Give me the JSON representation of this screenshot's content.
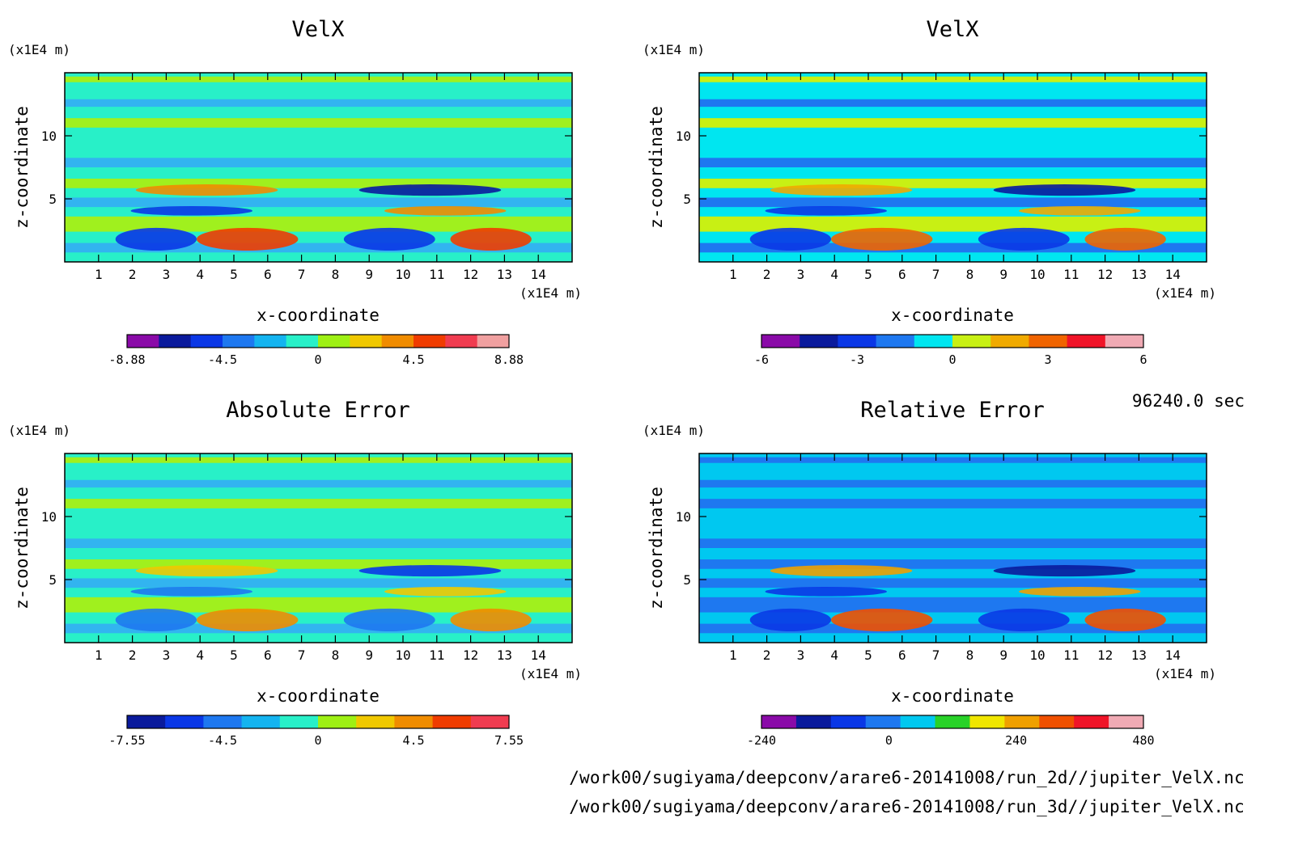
{
  "time_label": "96240.0 sec",
  "file_paths": [
    "/work00/sugiyama/deepconv/arare6-20141008/run_2d//jupiter_VelX.nc",
    "/work00/sugiyama/deepconv/arare6-20141008/run_3d//jupiter_VelX.nc"
  ],
  "chart_data": [
    {
      "type": "heatmap",
      "title": "VelX",
      "xlabel": "x-coordinate",
      "ylabel": "z-coordinate",
      "x_unit": "(x1E4 m)",
      "y_unit": "(x1E4 m)",
      "x_ticks": [
        "1",
        "2",
        "3",
        "4",
        "5",
        "6",
        "7",
        "8",
        "9",
        "10",
        "11",
        "12",
        "13",
        "14"
      ],
      "y_ticks": [
        "5",
        "10"
      ],
      "xlim": [
        0,
        15
      ],
      "ylim": [
        0,
        15
      ],
      "colorbar": {
        "colors": [
          "#8a0aa8",
          "#0a1a9c",
          "#0a37e6",
          "#1e78f0",
          "#14b4f0",
          "#28f0c8",
          "#9ef014",
          "#f0c800",
          "#f08c00",
          "#f03c00",
          "#f03c50",
          "#f0a0a0"
        ],
        "labels": [
          "-8.88",
          "-4.5",
          "0",
          "4.5",
          "8.88"
        ]
      },
      "palette": [
        "#28f0c8",
        "#a0f01e",
        "#32b4f0"
      ]
    },
    {
      "type": "heatmap",
      "title": "VelX",
      "xlabel": "x-coordinate",
      "ylabel": "z-coordinate",
      "x_unit": "(x1E4 m)",
      "y_unit": "(x1E4 m)",
      "x_ticks": [
        "1",
        "2",
        "3",
        "4",
        "5",
        "6",
        "7",
        "8",
        "9",
        "10",
        "11",
        "12",
        "13",
        "14"
      ],
      "y_ticks": [
        "5",
        "10"
      ],
      "xlim": [
        0,
        15
      ],
      "ylim": [
        0,
        15
      ],
      "colorbar": {
        "colors": [
          "#8a0aa8",
          "#0a1a9c",
          "#0a37e6",
          "#1e78f0",
          "#00e6f0",
          "#c8f014",
          "#f0aa00",
          "#f06400",
          "#f01428",
          "#f0aab4"
        ],
        "labels": [
          "-6",
          "-3",
          "0",
          "3",
          "6"
        ]
      },
      "palette": [
        "#00e6f0",
        "#c8f014",
        "#1e78f0"
      ]
    },
    {
      "type": "heatmap",
      "title": "Absolute Error",
      "xlabel": "x-coordinate",
      "ylabel": "z-coordinate",
      "x_unit": "(x1E4 m)",
      "y_unit": "(x1E4 m)",
      "x_ticks": [
        "1",
        "2",
        "3",
        "4",
        "5",
        "6",
        "7",
        "8",
        "9",
        "10",
        "11",
        "12",
        "13",
        "14"
      ],
      "y_ticks": [
        "5",
        "10"
      ],
      "xlim": [
        0,
        15
      ],
      "ylim": [
        0,
        15
      ],
      "colorbar": {
        "colors": [
          "#0a1a9c",
          "#0a37e6",
          "#1e78f0",
          "#14b4f0",
          "#28f0c8",
          "#9ef014",
          "#f0c800",
          "#f08c00",
          "#f03c00",
          "#f03c50"
        ],
        "labels": [
          "-7.55",
          "-4.5",
          "0",
          "4.5",
          "7.55"
        ]
      },
      "palette": [
        "#28f0c8",
        "#a0f01e",
        "#32b4f0"
      ]
    },
    {
      "type": "heatmap",
      "title": "Relative Error",
      "xlabel": "x-coordinate",
      "ylabel": "z-coordinate",
      "x_unit": "(x1E4 m)",
      "y_unit": "(x1E4 m)",
      "x_ticks": [
        "1",
        "2",
        "3",
        "4",
        "5",
        "6",
        "7",
        "8",
        "9",
        "10",
        "11",
        "12",
        "13",
        "14"
      ],
      "y_ticks": [
        "5",
        "10"
      ],
      "xlim": [
        0,
        15
      ],
      "ylim": [
        0,
        15
      ],
      "colorbar": {
        "colors": [
          "#8a0aa8",
          "#0a1a9c",
          "#0a37e6",
          "#1e78f0",
          "#00c8f0",
          "#28d228",
          "#f0e600",
          "#f0a000",
          "#f05000",
          "#f01428",
          "#f0aab4"
        ],
        "labels": [
          "-240",
          "0",
          "240",
          "480"
        ]
      },
      "palette": [
        "#00c8f0",
        "#1e78f0",
        "#1e78f0"
      ]
    }
  ]
}
